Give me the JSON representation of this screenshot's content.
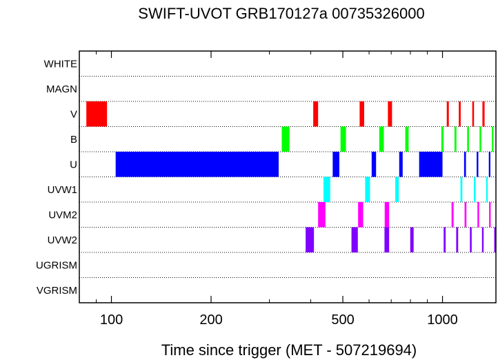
{
  "chart_data": {
    "type": "timeline",
    "title": "SWIFT-UVOT GRB170127a 00735326000",
    "xlabel": "Time since trigger (MET - 507219694)",
    "ylabel": "",
    "x_scale": "log",
    "xlim": [
      80,
      1450
    ],
    "x_ticks": [
      {
        "value": 100,
        "label": "100"
      },
      {
        "value": 200,
        "label": "200"
      },
      {
        "value": 500,
        "label": "500"
      },
      {
        "value": 1000,
        "label": "1000"
      }
    ],
    "grid": "horizontal dotted lines between filter rows",
    "filters": [
      {
        "name": "WHITE",
        "color": "#000000",
        "intervals": []
      },
      {
        "name": "MAGN",
        "color": "#000000",
        "intervals": []
      },
      {
        "name": "V",
        "color": "#ff0000",
        "intervals": [
          [
            84,
            97
          ],
          [
            407,
            421
          ],
          [
            562,
            580
          ],
          [
            684,
            704
          ],
          [
            1030,
            1045
          ],
          [
            1120,
            1135
          ],
          [
            1230,
            1245
          ],
          [
            1320,
            1340
          ]
        ]
      },
      {
        "name": "B",
        "color": "#00ff00",
        "intervals": [
          [
            327,
            345
          ],
          [
            492,
            511
          ],
          [
            644,
            665
          ],
          [
            772,
            790
          ],
          [
            992,
            1007
          ],
          [
            1087,
            1102
          ],
          [
            1187,
            1202
          ],
          [
            1294,
            1309
          ],
          [
            1410,
            1425
          ]
        ]
      },
      {
        "name": "U",
        "color": "#0000ff",
        "intervals": [
          [
            103,
            320
          ],
          [
            466,
            488
          ],
          [
            611,
            630
          ],
          [
            740,
            758
          ],
          [
            850,
            1000
          ],
          [
            1162,
            1177
          ],
          [
            1268,
            1283
          ],
          [
            1380,
            1395
          ]
        ]
      },
      {
        "name": "UVW1",
        "color": "#00ffff",
        "intervals": [
          [
            437,
            458
          ],
          [
            584,
            604
          ],
          [
            720,
            738
          ],
          [
            1133,
            1148
          ],
          [
            1244,
            1259
          ],
          [
            1355,
            1370
          ]
        ]
      },
      {
        "name": "UVM2",
        "color": "#ff00ff",
        "intervals": [
          [
            421,
            443
          ],
          [
            556,
            576
          ],
          [
            669,
            690
          ],
          [
            1065,
            1080
          ],
          [
            1166,
            1181
          ],
          [
            1275,
            1290
          ],
          [
            1383,
            1398
          ]
        ]
      },
      {
        "name": "UVW2",
        "color": "#8000ff",
        "intervals": [
          [
            386,
            409
          ],
          [
            531,
            555
          ],
          [
            668,
            690
          ],
          [
            799,
            818
          ],
          [
            1008,
            1022
          ],
          [
            1100,
            1115
          ],
          [
            1210,
            1225
          ],
          [
            1316,
            1331
          ],
          [
            1433,
            1450
          ]
        ]
      },
      {
        "name": "UGRISM",
        "color": "#000000",
        "intervals": []
      },
      {
        "name": "VGRISM",
        "color": "#000000",
        "intervals": []
      }
    ]
  }
}
